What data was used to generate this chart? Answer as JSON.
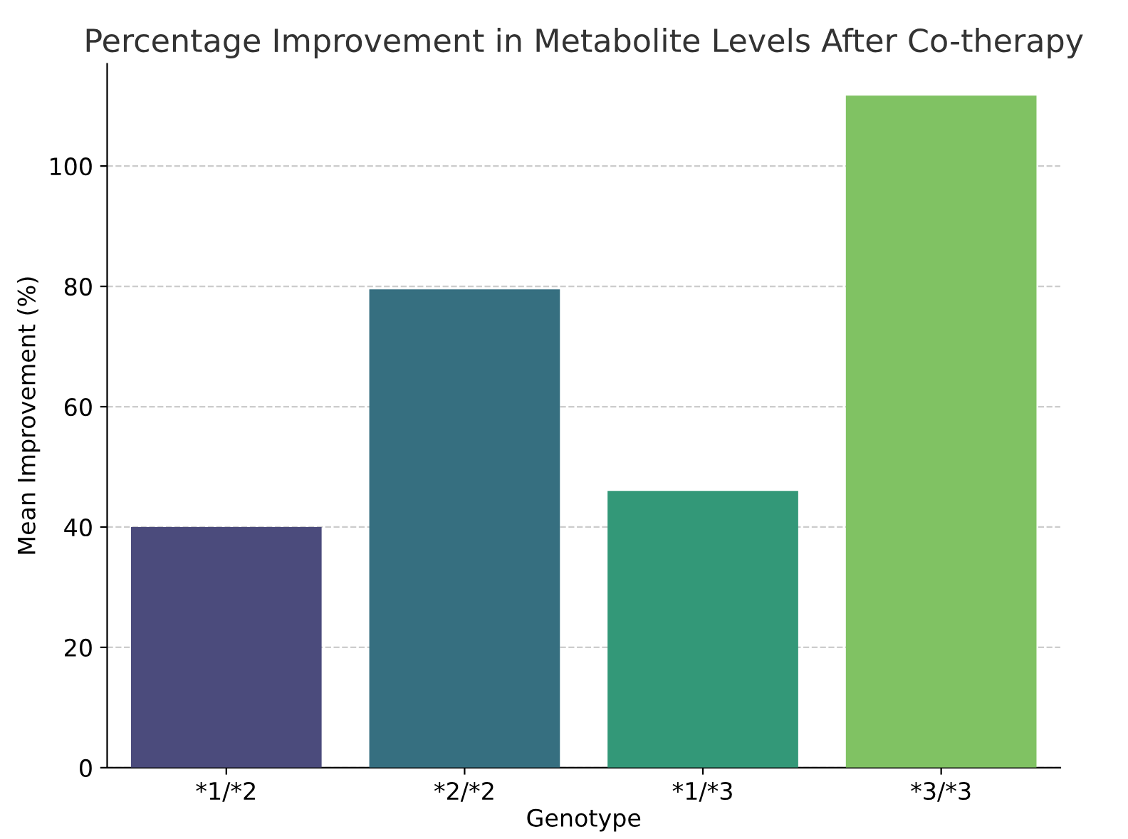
{
  "chart_data": {
    "type": "bar",
    "title": "Percentage Improvement in Metabolite Levels After Co-therapy",
    "xlabel": "Genotype",
    "ylabel": "Mean Improvement (%)",
    "categories": [
      "*1/*2",
      "*2/*2",
      "*1/*3",
      "*3/*3"
    ],
    "values": [
      40,
      79.5,
      46,
      111.7
    ],
    "colors": [
      "#4b4b7c",
      "#366f80",
      "#339878",
      "#80c263"
    ],
    "ylim": [
      0,
      117
    ],
    "yticks": [
      0,
      20,
      40,
      60,
      80,
      100
    ],
    "grid": "y"
  }
}
